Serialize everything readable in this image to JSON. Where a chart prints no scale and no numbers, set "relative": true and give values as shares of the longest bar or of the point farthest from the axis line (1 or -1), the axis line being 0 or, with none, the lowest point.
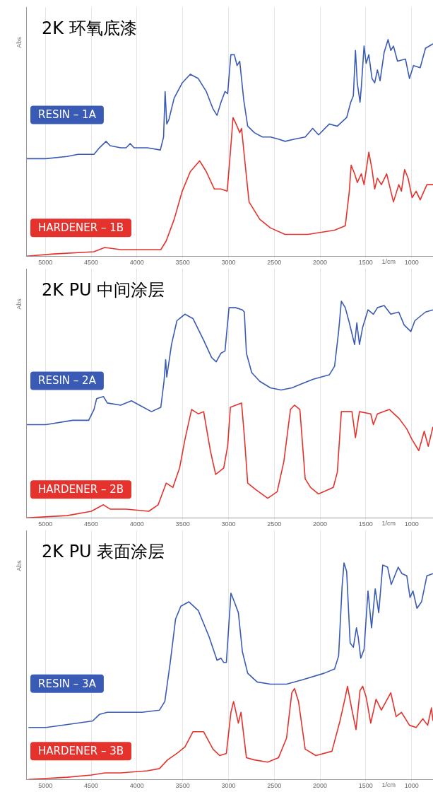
{
  "chart_data": [
    {
      "type": "line",
      "title": "2K 环氧底漆",
      "xlabel": "1/cm",
      "ylabel": "Abs",
      "relative": true,
      "grid": "x",
      "legend": false,
      "marker": "none",
      "line_style": "solid",
      "xlim": [
        5210,
        766
      ],
      "xticks": [
        5000,
        4500,
        4000,
        3500,
        3000,
        2500,
        2000,
        1500,
        1000
      ],
      "series": [
        {
          "name": "RESIN – 1A",
          "color": "#3a5bb5",
          "x": [
            5207,
            4994,
            4761,
            4644,
            4469,
            4410,
            4337,
            4293,
            4177,
            4118,
            4074,
            4031,
            3885,
            3744,
            3709,
            3692,
            3674,
            3651,
            3593,
            3505,
            3417,
            3330,
            3242,
            3169,
            3125,
            3082,
            3038,
            3009,
            2974,
            2936,
            2906,
            2877,
            2833,
            2790,
            2717,
            2629,
            2541,
            2454,
            2381,
            2279,
            2162,
            2080,
            2016,
            1899,
            1811,
            1709,
            1665,
            1636,
            1613,
            1593,
            1563,
            1549,
            1519,
            1496,
            1467,
            1432,
            1403,
            1373,
            1344,
            1300,
            1257,
            1227,
            1198,
            1154,
            1067,
            1023,
            979,
            906,
            848,
            766
          ],
          "values": [
            0.45,
            0.45,
            0.46,
            0.47,
            0.47,
            0.5,
            0.53,
            0.51,
            0.5,
            0.5,
            0.52,
            0.5,
            0.5,
            0.49,
            0.55,
            0.76,
            0.61,
            0.63,
            0.73,
            0.8,
            0.84,
            0.82,
            0.76,
            0.68,
            0.65,
            0.71,
            0.76,
            0.75,
            0.93,
            0.93,
            0.88,
            0.9,
            0.72,
            0.6,
            0.57,
            0.55,
            0.55,
            0.54,
            0.53,
            0.54,
            0.55,
            0.59,
            0.56,
            0.61,
            0.6,
            0.64,
            0.71,
            0.74,
            0.95,
            0.8,
            0.71,
            0.78,
            0.97,
            0.89,
            0.93,
            0.82,
            0.8,
            0.86,
            0.81,
            0.94,
            1.0,
            0.95,
            0.97,
            0.9,
            0.91,
            0.82,
            0.88,
            0.87,
            0.96,
            0.98
          ]
        },
        {
          "name": "HARDENER – 1B",
          "color": "#e5322d",
          "x": [
            5207,
            4907,
            4469,
            4352,
            4177,
            3885,
            3739,
            3680,
            3593,
            3505,
            3417,
            3315,
            3242,
            3155,
            3082,
            3014,
            2979,
            2950,
            2906,
            2877,
            2857,
            2819,
            2775,
            2658,
            2541,
            2381,
            2133,
            1841,
            1724,
            1680,
            1660,
            1622,
            1593,
            1549,
            1519,
            1467,
            1432,
            1403,
            1373,
            1330,
            1272,
            1198,
            1140,
            1111,
            1076,
            1038,
            994,
            950,
            906,
            833,
            766
          ],
          "values": [
            0.0,
            0.01,
            0.02,
            0.04,
            0.03,
            0.03,
            0.03,
            0.07,
            0.17,
            0.3,
            0.39,
            0.44,
            0.39,
            0.31,
            0.31,
            0.3,
            0.48,
            0.64,
            0.6,
            0.57,
            0.59,
            0.43,
            0.25,
            0.17,
            0.13,
            0.1,
            0.1,
            0.12,
            0.14,
            0.3,
            0.42,
            0.38,
            0.34,
            0.38,
            0.33,
            0.48,
            0.4,
            0.31,
            0.36,
            0.33,
            0.38,
            0.25,
            0.33,
            0.3,
            0.4,
            0.36,
            0.27,
            0.3,
            0.26,
            0.33,
            0.33
          ]
        }
      ]
    },
    {
      "type": "line",
      "title": "2K PU 中间涂层",
      "xlabel": "1/cm",
      "ylabel": "Abs",
      "relative": true,
      "grid": "x",
      "legend": false,
      "marker": "none",
      "line_style": "solid",
      "xlim": [
        5210,
        766
      ],
      "xticks": [
        5000,
        4500,
        4000,
        3500,
        3000,
        2500,
        2000,
        1500,
        1000
      ],
      "series": [
        {
          "name": "RESIN – 2A",
          "color": "#3a5bb5",
          "x": [
            5207,
            4994,
            4702,
            4527,
            4469,
            4440,
            4366,
            4323,
            4177,
            4060,
            3972,
            3841,
            3739,
            3704,
            3686,
            3674,
            3622,
            3563,
            3476,
            3388,
            3271,
            3184,
            3134,
            3082,
            3038,
            2994,
            2921,
            2848,
            2827,
            2804,
            2746,
            2658,
            2541,
            2425,
            2308,
            2191,
            2074,
            1899,
            1841,
            1797,
            1767,
            1724,
            1680,
            1622,
            1598,
            1569,
            1534,
            1476,
            1417,
            1373,
            1300,
            1227,
            1140,
            1081,
            1008,
            964,
            848,
            766
          ],
          "values": [
            0.43,
            0.43,
            0.45,
            0.45,
            0.5,
            0.55,
            0.56,
            0.53,
            0.52,
            0.54,
            0.52,
            0.49,
            0.51,
            0.63,
            0.73,
            0.65,
            0.8,
            0.91,
            0.94,
            0.92,
            0.82,
            0.74,
            0.72,
            0.76,
            0.77,
            0.97,
            0.97,
            0.96,
            0.95,
            0.76,
            0.67,
            0.63,
            0.6,
            0.59,
            0.6,
            0.62,
            0.64,
            0.66,
            0.7,
            0.86,
            1.0,
            0.97,
            0.9,
            0.8,
            0.9,
            0.8,
            0.88,
            0.96,
            0.94,
            0.97,
            0.98,
            0.94,
            0.95,
            0.89,
            0.86,
            0.91,
            0.95,
            0.96
          ]
        },
        {
          "name": "HARDENER – 2B",
          "color": "#e5322d",
          "x": [
            5207,
            4761,
            4498,
            4366,
            4293,
            4118,
            3870,
            3768,
            3680,
            3607,
            3534,
            3476,
            3403,
            3330,
            3271,
            3198,
            3140,
            3052,
            3009,
            2979,
            2921,
            2857,
            2827,
            2790,
            2702,
            2571,
            2468,
            2395,
            2323,
            2279,
            2220,
            2162,
            2103,
            2016,
            1855,
            1811,
            1767,
            1651,
            1613,
            1569,
            1446,
            1417,
            1373,
            1242,
            1140,
            1052,
            994,
            921,
            862,
            818,
            766
          ],
          "values": [
            0.0,
            0.01,
            0.03,
            0.06,
            0.04,
            0.04,
            0.03,
            0.06,
            0.16,
            0.14,
            0.23,
            0.36,
            0.5,
            0.48,
            0.49,
            0.31,
            0.2,
            0.23,
            0.33,
            0.51,
            0.52,
            0.53,
            0.38,
            0.16,
            0.13,
            0.09,
            0.12,
            0.26,
            0.5,
            0.52,
            0.5,
            0.18,
            0.14,
            0.11,
            0.14,
            0.21,
            0.49,
            0.49,
            0.37,
            0.49,
            0.48,
            0.43,
            0.48,
            0.5,
            0.46,
            0.41,
            0.36,
            0.31,
            0.4,
            0.33,
            0.42
          ]
        }
      ]
    },
    {
      "type": "line",
      "title": "2K PU 表面涂层",
      "xlabel": "1/cm",
      "ylabel": "Abs",
      "relative": true,
      "grid": "x",
      "legend": false,
      "marker": "none",
      "line_style": "solid",
      "xlim": [
        5210,
        766
      ],
      "xticks": [
        5000,
        4500,
        4000,
        3500,
        3000,
        2500,
        2000,
        1500,
        1000
      ],
      "series": [
        {
          "name": "RESIN – 3A",
          "color": "#3a5bb5",
          "x": [
            5184,
            4994,
            4644,
            4483,
            4410,
            4323,
            4118,
            3943,
            3753,
            3695,
            3636,
            3578,
            3520,
            3432,
            3330,
            3213,
            3125,
            3082,
            3052,
            3023,
            2973,
            2936,
            2892,
            2848,
            2790,
            2687,
            2541,
            2366,
            2191,
            1957,
            1841,
            1797,
            1759,
            1738,
            1709,
            1671,
            1636,
            1602,
            1584,
            1555,
            1519,
            1476,
            1437,
            1397,
            1359,
            1315,
            1262,
            1222,
            1146,
            1105,
            1052,
            1017,
            985,
            941,
            891,
            833,
            766
          ],
          "values": [
            0.24,
            0.24,
            0.26,
            0.27,
            0.3,
            0.31,
            0.31,
            0.31,
            0.32,
            0.36,
            0.54,
            0.74,
            0.8,
            0.82,
            0.78,
            0.66,
            0.55,
            0.56,
            0.54,
            0.54,
            0.86,
            0.82,
            0.77,
            0.59,
            0.49,
            0.45,
            0.44,
            0.44,
            0.46,
            0.49,
            0.51,
            0.57,
            0.89,
            1.0,
            0.96,
            0.63,
            0.61,
            0.7,
            0.66,
            0.56,
            0.6,
            0.87,
            0.7,
            0.88,
            0.77,
            0.99,
            0.98,
            0.9,
            0.98,
            0.95,
            0.94,
            0.84,
            0.87,
            0.79,
            0.82,
            0.94,
            0.95
          ]
        },
        {
          "name": "HARDENER – 3B",
          "color": "#e5322d",
          "x": [
            5184,
            4761,
            4498,
            4352,
            4177,
            3885,
            3753,
            3666,
            3563,
            3476,
            3388,
            3271,
            3169,
            3096,
            3023,
            2973,
            2944,
            2892,
            2863,
            2804,
            2717,
            2571,
            2454,
            2366,
            2308,
            2279,
            2235,
            2162,
            2045,
            1870,
            1782,
            1724,
            1700,
            1651,
            1607,
            1563,
            1534,
            1496,
            1446,
            1388,
            1330,
            1227,
            1169,
            1111,
            1023,
            950,
            877,
            824,
            783,
            766
          ],
          "values": [
            0.0,
            0.01,
            0.02,
            0.03,
            0.03,
            0.04,
            0.05,
            0.09,
            0.12,
            0.15,
            0.22,
            0.22,
            0.14,
            0.11,
            0.12,
            0.31,
            0.36,
            0.26,
            0.31,
            0.1,
            0.09,
            0.08,
            0.1,
            0.19,
            0.4,
            0.42,
            0.36,
            0.14,
            0.11,
            0.13,
            0.27,
            0.38,
            0.43,
            0.32,
            0.23,
            0.41,
            0.43,
            0.38,
            0.26,
            0.37,
            0.32,
            0.4,
            0.29,
            0.31,
            0.25,
            0.24,
            0.28,
            0.25,
            0.33,
            0.27
          ]
        }
      ]
    }
  ]
}
